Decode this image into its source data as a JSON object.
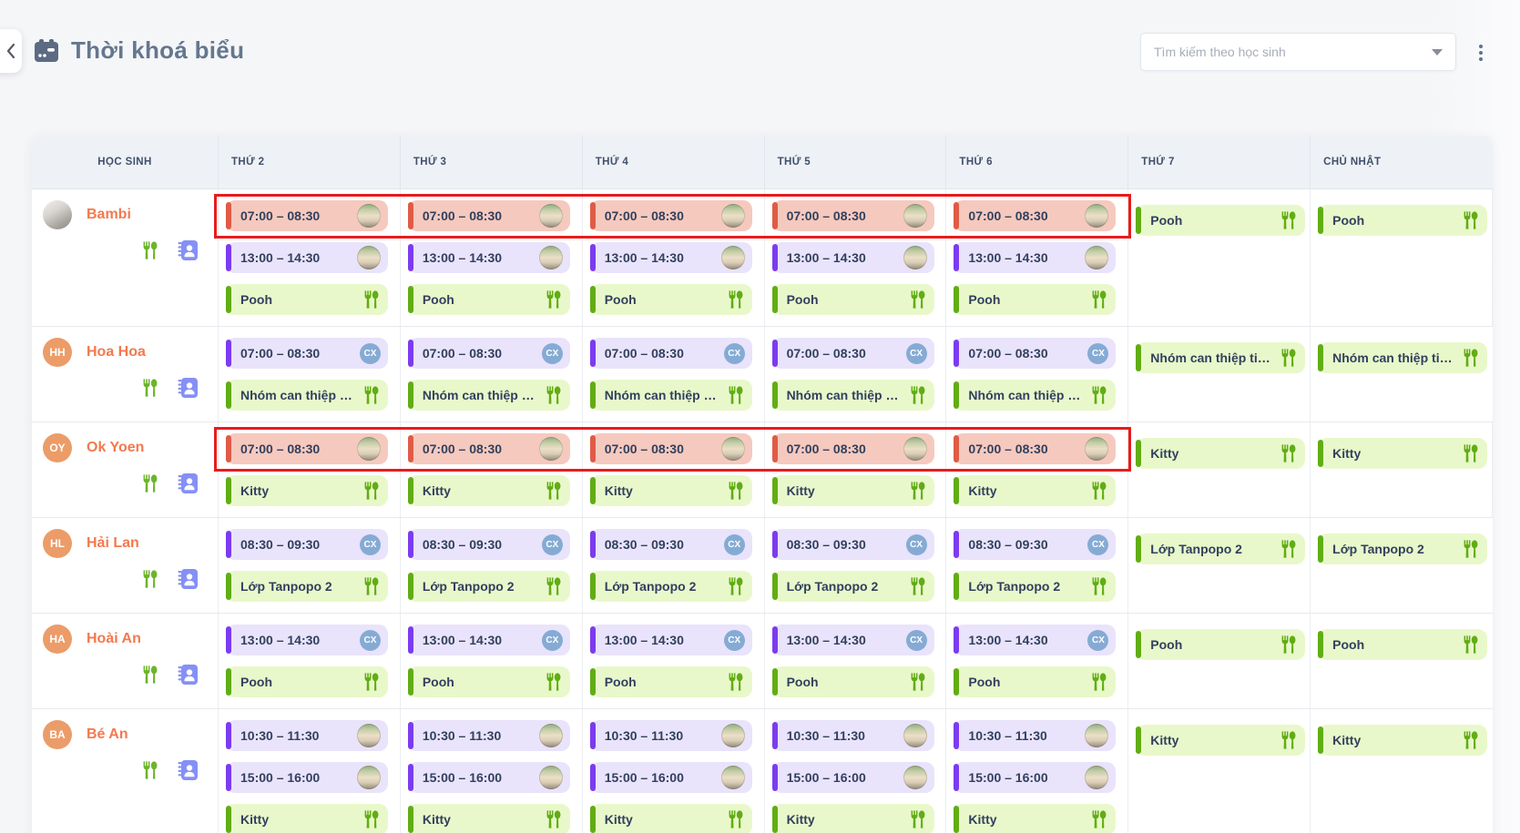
{
  "header": {
    "title": "Thời khoá biểu",
    "search_placeholder": "Tìm kiếm theo học sinh"
  },
  "badges": {
    "cx_label": "CX"
  },
  "table": {
    "columns": [
      "HỌC SINH",
      "THỨ 2",
      "THỨ 3",
      "THỨ 4",
      "THỨ 5",
      "THỨ 6",
      "THỨ 7",
      "CHỦ NHẬT"
    ],
    "weekday_count": 5,
    "weekend_count": 2,
    "rows": [
      {
        "student": {
          "name": "Bambi",
          "initials": "",
          "avatar": "photo"
        },
        "highlight_first_slot": true,
        "weekday_chips": [
          {
            "variant": "salmon",
            "label": "07:00 – 08:30",
            "trailing": "photo"
          },
          {
            "variant": "purple",
            "label": "13:00 – 14:30",
            "trailing": "photo"
          },
          {
            "variant": "green",
            "label": "Pooh",
            "trailing": "utensils"
          }
        ],
        "weekend_chips": [
          {
            "variant": "green",
            "label": "Pooh",
            "trailing": "utensils"
          }
        ]
      },
      {
        "student": {
          "name": "Hoa Hoa",
          "initials": "HH",
          "avatar": "initials"
        },
        "highlight_first_slot": false,
        "weekday_chips": [
          {
            "variant": "purple",
            "label": "07:00 – 08:30",
            "trailing": "cx"
          },
          {
            "variant": "green",
            "label": "Nhóm can thiệp tiế...",
            "trailing": "utensils"
          }
        ],
        "weekend_chips": [
          {
            "variant": "green",
            "label": "Nhóm can thiệp tiế...",
            "trailing": "utensils"
          }
        ]
      },
      {
        "student": {
          "name": "Ok Yoen",
          "initials": "OY",
          "avatar": "initials"
        },
        "highlight_first_slot": true,
        "weekday_chips": [
          {
            "variant": "salmon",
            "label": "07:00 – 08:30",
            "trailing": "photo"
          },
          {
            "variant": "green",
            "label": "Kitty",
            "trailing": "utensils"
          }
        ],
        "weekend_chips": [
          {
            "variant": "green",
            "label": "Kitty",
            "trailing": "utensils"
          }
        ]
      },
      {
        "student": {
          "name": "Hải Lan",
          "initials": "HL",
          "avatar": "initials"
        },
        "highlight_first_slot": false,
        "weekday_chips": [
          {
            "variant": "purple",
            "label": "08:30 – 09:30",
            "trailing": "cx"
          },
          {
            "variant": "green",
            "label": "Lớp Tanpopo 2",
            "trailing": "utensils"
          }
        ],
        "weekend_chips": [
          {
            "variant": "green",
            "label": "Lớp Tanpopo 2",
            "trailing": "utensils"
          }
        ]
      },
      {
        "student": {
          "name": "Hoài An",
          "initials": "HA",
          "avatar": "initials"
        },
        "highlight_first_slot": false,
        "weekday_chips": [
          {
            "variant": "purple",
            "label": "13:00 – 14:30",
            "trailing": "cx"
          },
          {
            "variant": "green",
            "label": "Pooh",
            "trailing": "utensils"
          }
        ],
        "weekend_chips": [
          {
            "variant": "green",
            "label": "Pooh",
            "trailing": "utensils"
          }
        ]
      },
      {
        "student": {
          "name": "Bé An",
          "initials": "BA",
          "avatar": "initials"
        },
        "highlight_first_slot": false,
        "weekday_chips": [
          {
            "variant": "purple",
            "label": "10:30 – 11:30",
            "trailing": "photo"
          },
          {
            "variant": "purple",
            "label": "15:00 – 16:00",
            "trailing": "photo"
          },
          {
            "variant": "green",
            "label": "Kitty",
            "trailing": "utensils"
          }
        ],
        "weekend_chips": [
          {
            "variant": "green",
            "label": "Kitty",
            "trailing": "utensils"
          }
        ]
      }
    ]
  },
  "colors": {
    "salmon_bg": "#f6c9be",
    "salmon_accent": "#e05b45",
    "purple_bg": "#e9e3fb",
    "purple_accent": "#7c3bf0",
    "green_bg": "#e9f8ca",
    "green_accent": "#61ad14",
    "highlight_red": "#e81c1c",
    "name_orange": "#f3794e",
    "avatar_orange": "#ec9c68",
    "cx_blue": "#85abd4",
    "kebab": "#5b7390"
  }
}
